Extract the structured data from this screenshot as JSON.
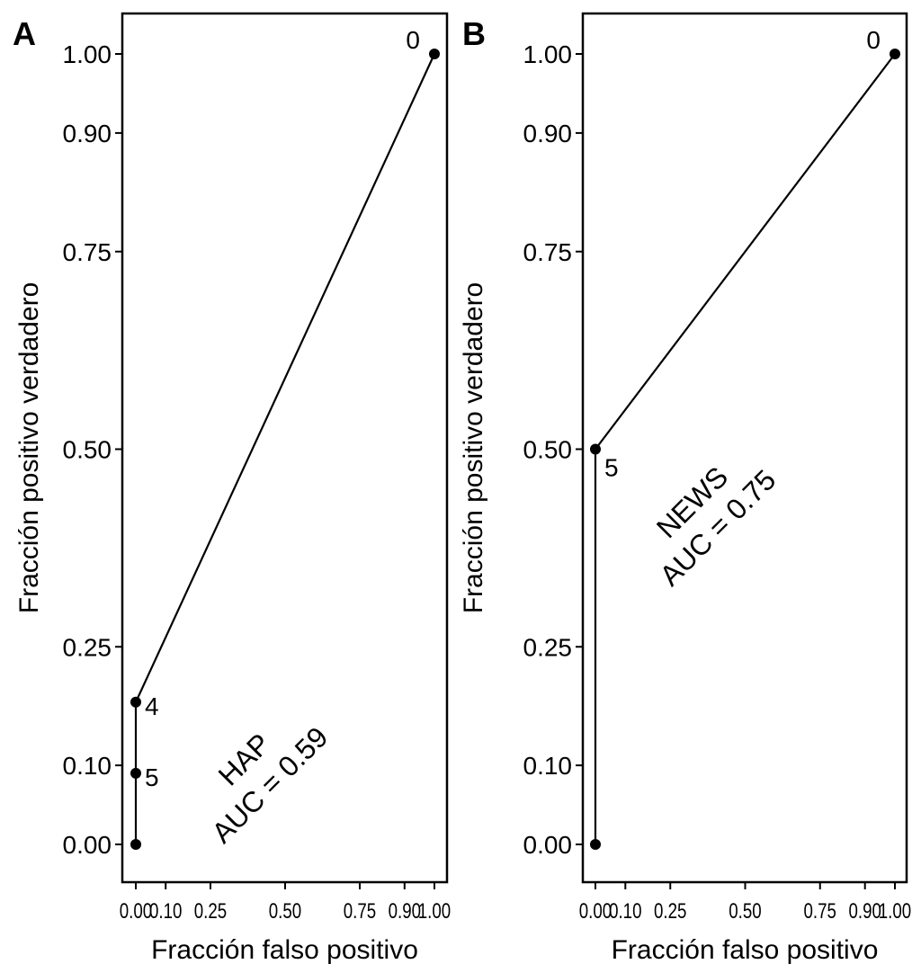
{
  "chart_data": [
    {
      "type": "line",
      "panel_label": "A",
      "xlabel": "Fracción falso positivo",
      "ylabel": "Fracción positivo verdadero",
      "xlim": [
        0,
        1
      ],
      "ylim": [
        0,
        1
      ],
      "x_ticks": [
        0.0,
        0.1,
        0.25,
        0.5,
        0.75,
        0.9,
        1.0
      ],
      "x_tick_labels": [
        "0.00",
        "0.10",
        "0.25",
        "0.50",
        "0.75",
        "0.90",
        "1.00"
      ],
      "y_ticks": [
        0.0,
        0.1,
        0.25,
        0.5,
        0.75,
        0.9,
        1.0
      ],
      "y_tick_labels": [
        "0.00",
        "0.10",
        "0.25",
        "0.50",
        "0.75",
        "0.90",
        "1.00"
      ],
      "grid": false,
      "points": [
        {
          "x": 0.0,
          "y": 0.0,
          "label": ""
        },
        {
          "x": 0.0,
          "y": 0.09,
          "label": "5"
        },
        {
          "x": 0.0,
          "y": 0.18,
          "label": "4"
        },
        {
          "x": 1.0,
          "y": 1.0,
          "label": "0"
        }
      ],
      "annotation": [
        "HAP",
        "AUC = 0.59"
      ]
    },
    {
      "type": "line",
      "panel_label": "B",
      "xlabel": "Fracción falso positivo",
      "ylabel": "Fracción positivo verdadero",
      "xlim": [
        0,
        1
      ],
      "ylim": [
        0,
        1
      ],
      "x_ticks": [
        0.0,
        0.1,
        0.25,
        0.5,
        0.75,
        0.9,
        1.0
      ],
      "x_tick_labels": [
        "0.00",
        "0.10",
        "0.25",
        "0.50",
        "0.75",
        "0.90",
        "1.00"
      ],
      "y_ticks": [
        0.0,
        0.1,
        0.25,
        0.5,
        0.75,
        0.9,
        1.0
      ],
      "y_tick_labels": [
        "0.00",
        "0.10",
        "0.25",
        "0.50",
        "0.75",
        "0.90",
        "1.00"
      ],
      "grid": false,
      "points": [
        {
          "x": 0.0,
          "y": 0.0,
          "label": ""
        },
        {
          "x": 0.0,
          "y": 0.5,
          "label": "5"
        },
        {
          "x": 1.0,
          "y": 1.0,
          "label": "0"
        }
      ],
      "annotation": [
        "NEWS",
        "AUC = 0.75"
      ]
    }
  ]
}
